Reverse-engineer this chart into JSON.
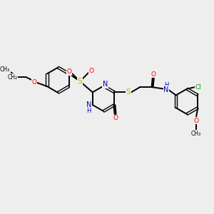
{
  "bg_color": "#eeeeee",
  "bond_color": "#000000",
  "atom_colors": {
    "N": "#0000cc",
    "O": "#ff0000",
    "S": "#bbbb00",
    "Cl": "#00aa00",
    "H": "#0000cc",
    "C": "#000000"
  },
  "figsize": [
    3.0,
    3.0
  ],
  "dpi": 100,
  "xlim": [
    0,
    12
  ],
  "ylim": [
    0,
    10
  ]
}
